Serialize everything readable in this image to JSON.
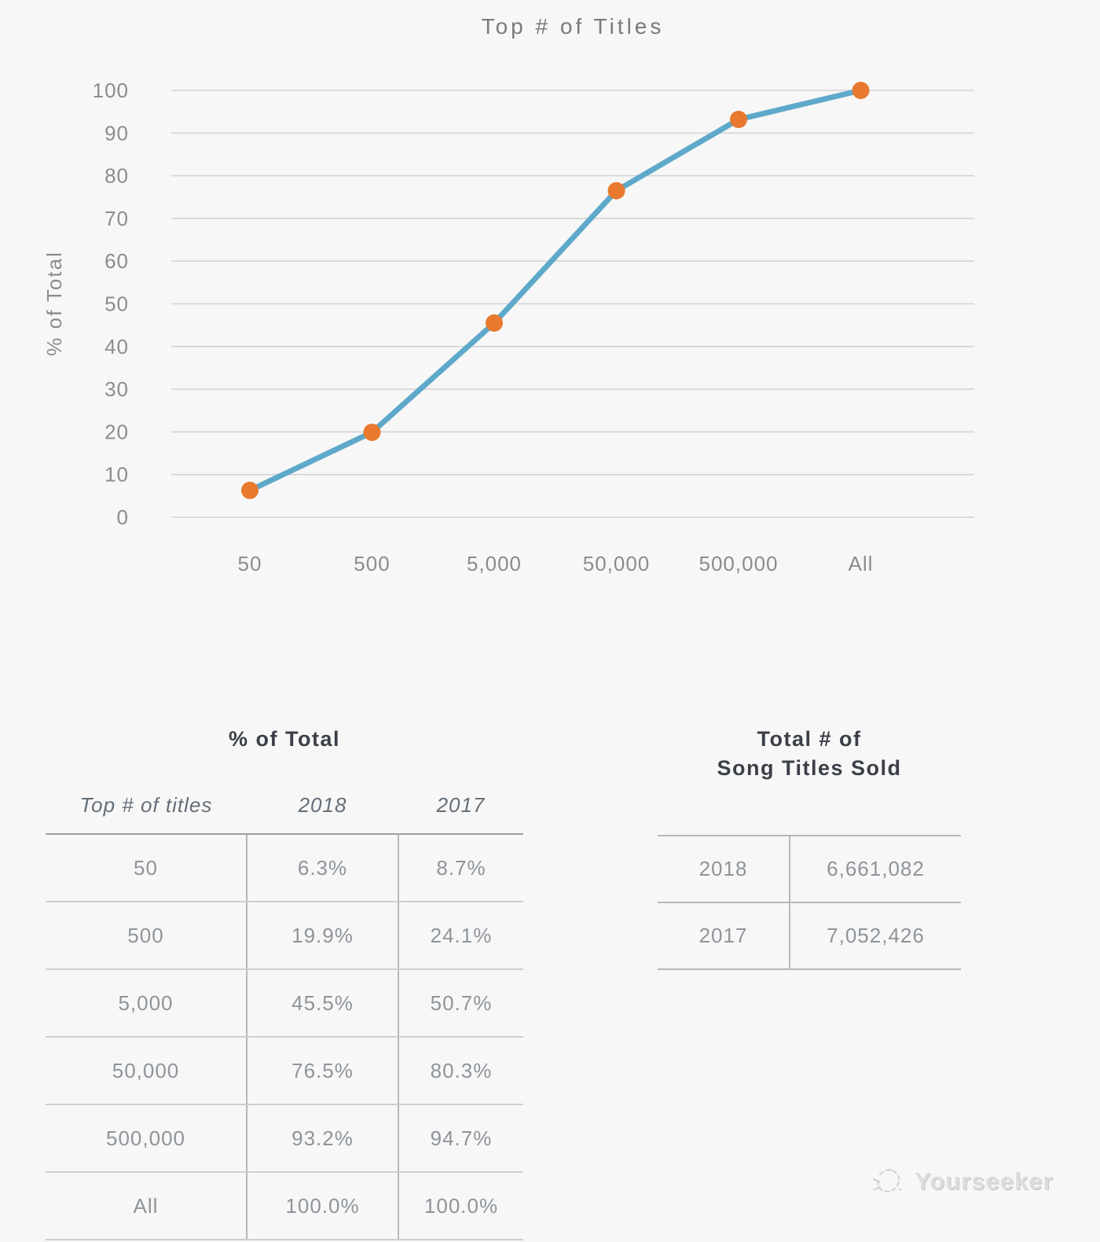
{
  "chart_data": {
    "type": "line",
    "title": "Top # of Titles",
    "xlabel": "",
    "ylabel": "% of Total",
    "categories": [
      "50",
      "500",
      "5,000",
      "50,000",
      "500,000",
      "All"
    ],
    "series": [
      {
        "name": "2018",
        "values": [
          6.3,
          19.9,
          45.5,
          76.5,
          93.2,
          100.0
        ]
      }
    ],
    "ylim": [
      0,
      100
    ],
    "ytick_step": 10,
    "yticks": [
      "0",
      "10",
      "20",
      "30",
      "40",
      "50",
      "60",
      "70",
      "80",
      "90",
      "100"
    ],
    "grid": true,
    "legend": false,
    "colors": {
      "line": "#5EA9CA",
      "marker": "#E8792E",
      "grid": "#d4d4d4",
      "axis_text": "#8c8c8c",
      "title_text": "#7a7a7a"
    }
  },
  "tables": {
    "pct_table": {
      "title": "% of Total",
      "columns": [
        "Top # of titles",
        "2018",
        "2017"
      ],
      "rows": [
        [
          "50",
          "6.3%",
          "8.7%"
        ],
        [
          "500",
          "19.9%",
          "24.1%"
        ],
        [
          "5,000",
          "45.5%",
          "50.7%"
        ],
        [
          "50,000",
          "76.5%",
          "80.3%"
        ],
        [
          "500,000",
          "93.2%",
          "94.7%"
        ],
        [
          "All",
          "100.0%",
          "100.0%"
        ]
      ]
    },
    "totals_table": {
      "title_line1": "Total # of",
      "title_line2": "Song Titles Sold",
      "rows": [
        [
          "2018",
          "6,661,082"
        ],
        [
          "2017",
          "7,052,426"
        ]
      ]
    }
  },
  "watermark": {
    "label": "Yourseeker"
  }
}
